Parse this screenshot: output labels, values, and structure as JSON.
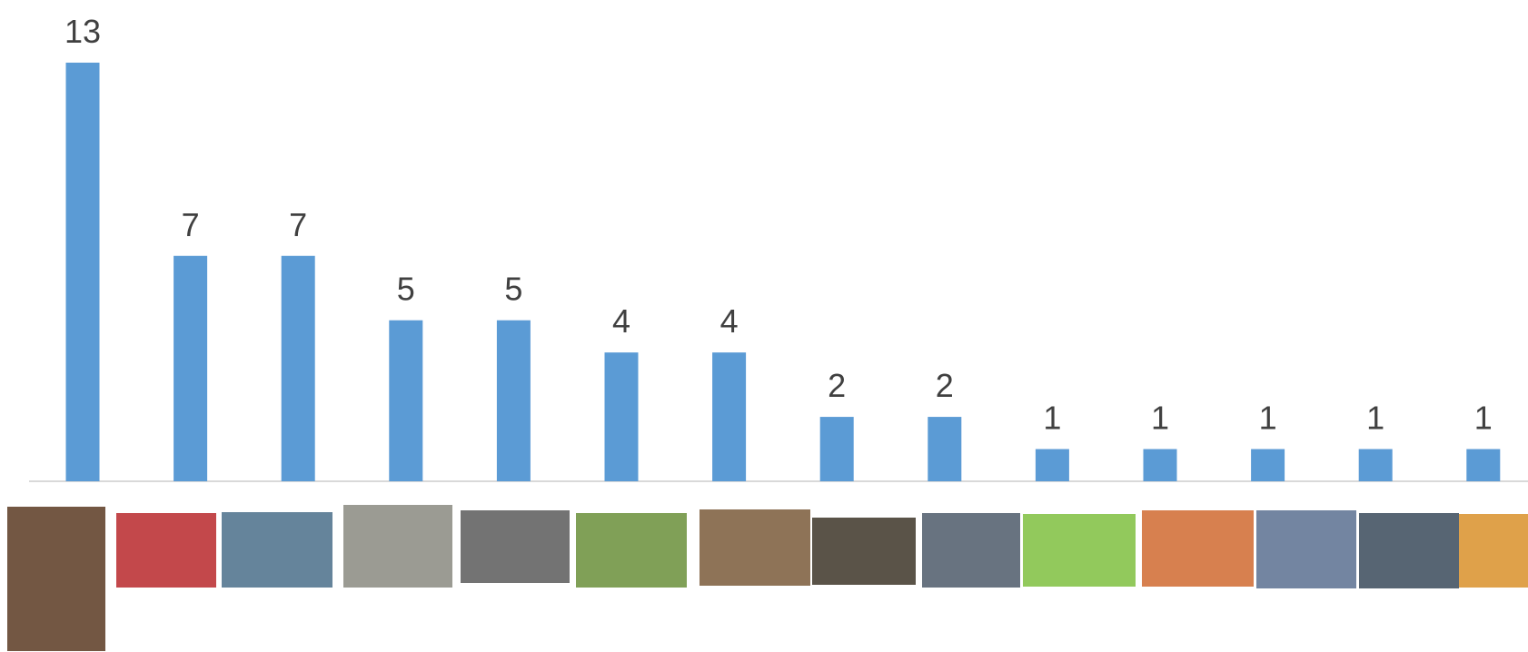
{
  "chart_data": {
    "type": "bar",
    "categories": [
      null,
      null,
      null,
      null,
      null,
      null,
      null,
      null,
      null,
      null,
      null,
      null,
      null,
      null
    ],
    "values": [
      13,
      7,
      7,
      5,
      5,
      4,
      4,
      2,
      2,
      1,
      1,
      1,
      1,
      1
    ],
    "color": "#5b9bd5"
  }
}
